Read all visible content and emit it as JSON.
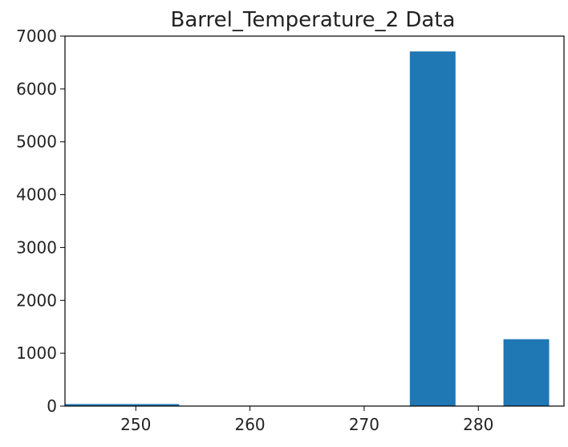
{
  "chart_data": {
    "type": "bar",
    "title": "Barrel_Temperature_2 Data",
    "xlabel": "",
    "ylabel": "",
    "bars": [
      {
        "x_start": 243.8,
        "x_end": 253.8,
        "value": 38
      },
      {
        "x_start": 274.0,
        "x_end": 278.0,
        "value": 6710
      },
      {
        "x_start": 282.2,
        "x_end": 286.2,
        "value": 1265
      }
    ],
    "xlim": [
      243.8,
      287.5
    ],
    "ylim": [
      0,
      7000
    ],
    "xticks": [
      250,
      260,
      270,
      280
    ],
    "yticks": [
      0,
      1000,
      2000,
      3000,
      4000,
      5000,
      6000,
      7000
    ],
    "grid": false,
    "legend": "none",
    "bar_color": "#1f77b4"
  }
}
